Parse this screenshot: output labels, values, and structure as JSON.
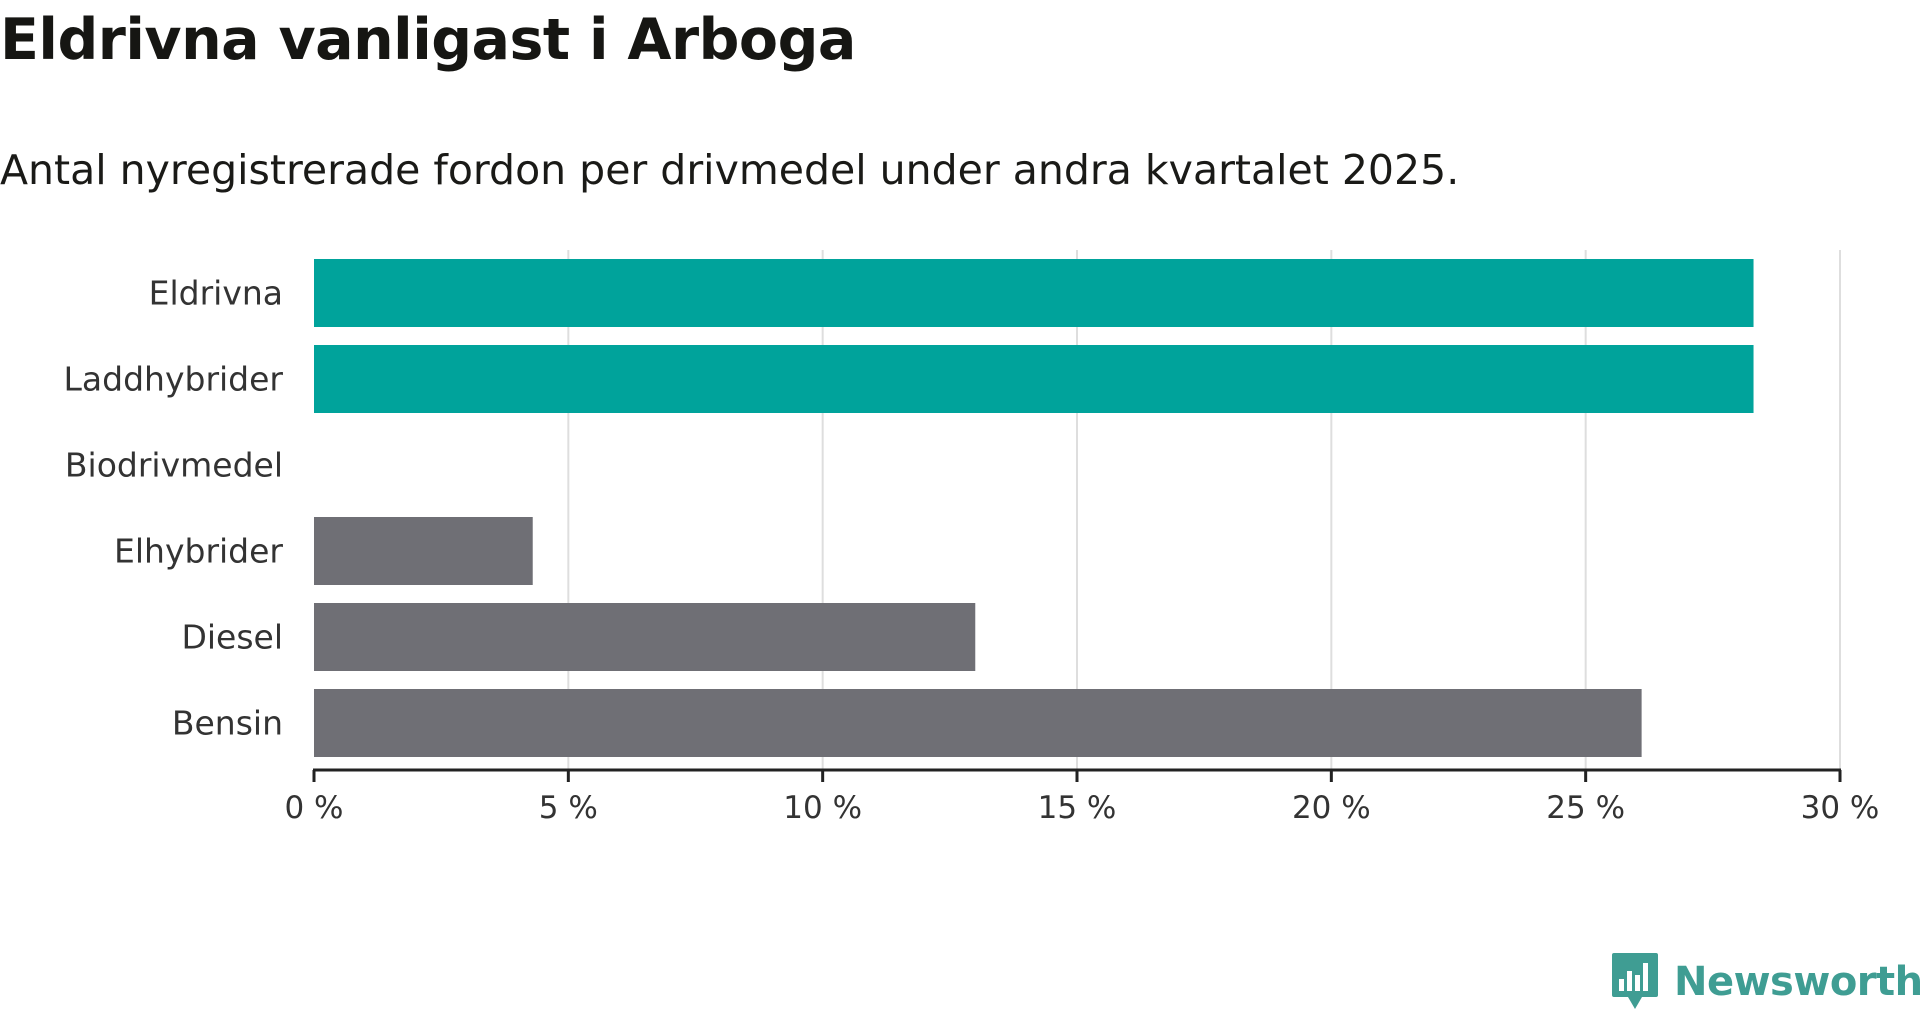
{
  "title": "Eldrivna vanligast i Arboga",
  "subtitle": "Antal nyregistrerade fordon per drivmedel under andra kvartalet 2025.",
  "logo": {
    "text": "Newsworthy",
    "icon": "newsworthy-bar-chart-icon",
    "color": "#3f9d93"
  },
  "chart_data": {
    "type": "bar",
    "orientation": "horizontal",
    "categories": [
      "Eldrivna",
      "Laddhybrider",
      "Biodrivmedel",
      "Elhybrider",
      "Diesel",
      "Bensin"
    ],
    "values": [
      28.3,
      28.3,
      0,
      4.3,
      13.0,
      26.1
    ],
    "colors": [
      "#00a39b",
      "#00a39b",
      "#00a39b",
      "#6f6f75",
      "#6f6f75",
      "#6f6f75"
    ],
    "xlim": [
      0,
      30
    ],
    "xticks": [
      0,
      5,
      10,
      15,
      20,
      25,
      30
    ],
    "xtick_labels": [
      "0 %",
      "5 %",
      "10 %",
      "15 %",
      "20 %",
      "25 %",
      "30 %"
    ],
    "unit": "%",
    "grid": "vertical",
    "title": "Eldrivna vanligast i Arboga",
    "subtitle": "Antal nyregistrerade fordon per drivmedel under andra kvartalet 2025."
  }
}
